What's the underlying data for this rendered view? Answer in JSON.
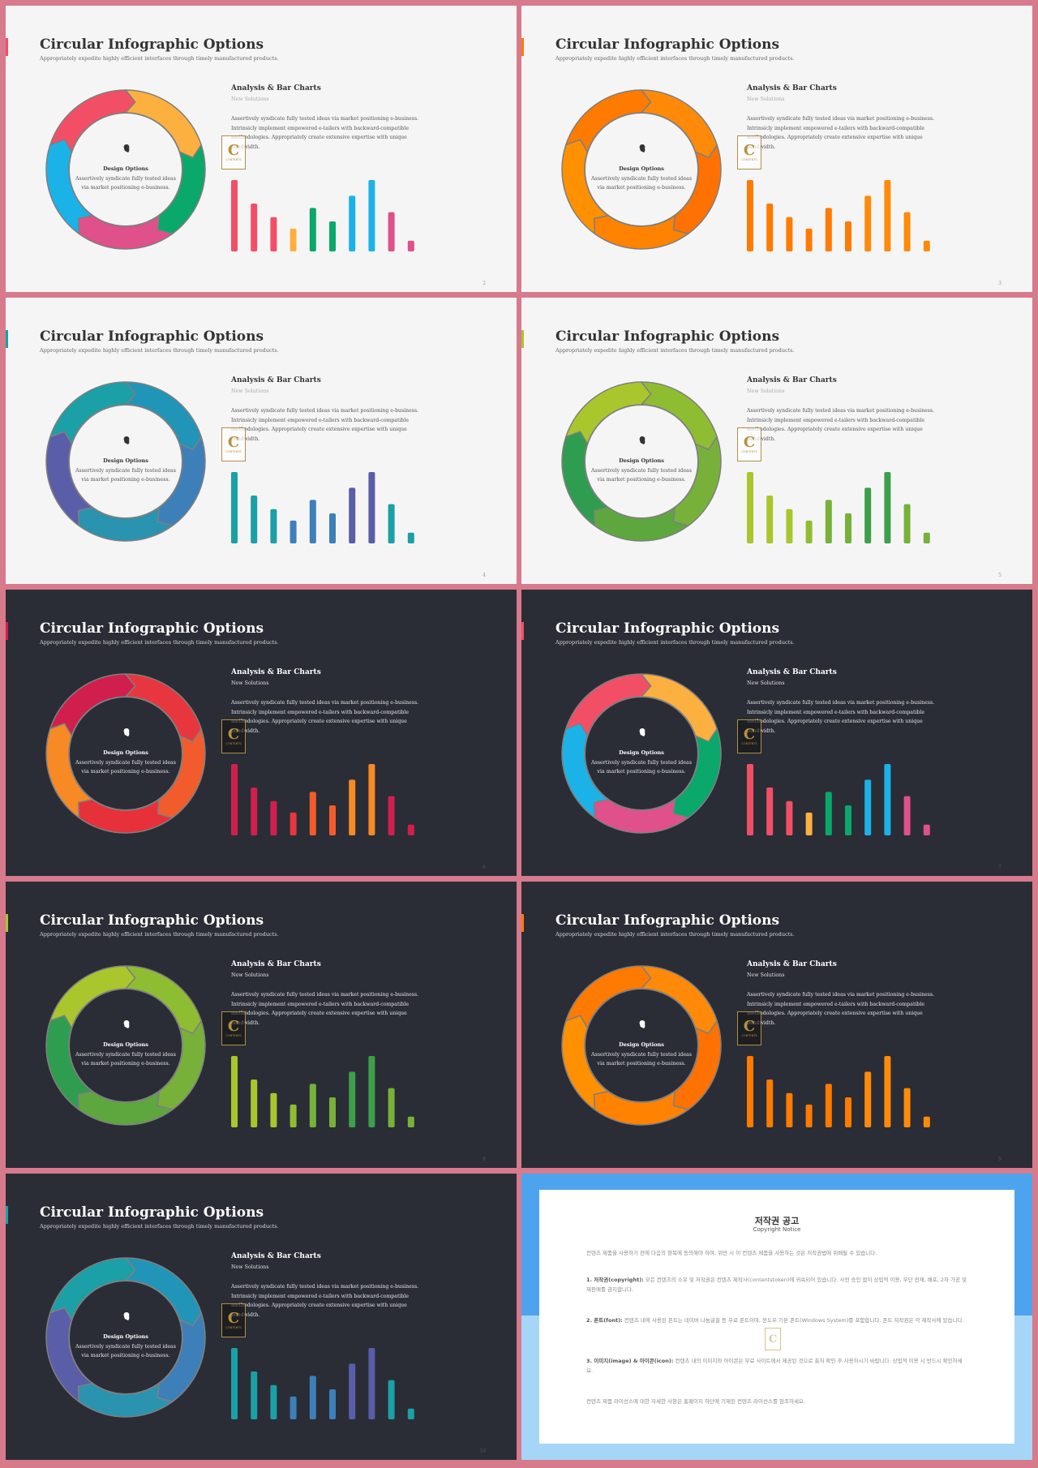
{
  "common": {
    "title": "Circular Infographic Options",
    "subtitle": "Appropriately expedite highly efficient interfaces through timely manufactured products.",
    "section_title": "Analysis & Bar Charts",
    "section_subtitle": "New Solutions",
    "body": "Assertively syndicate fully tested ideas via market positioning e-business. Intrinsicly implement empowered e-tailers with backward-compatible methodologies. Appropriately create extensive expertise with unique bandwidth.",
    "center_title": "Design Options",
    "center_text": "Assertively syndicate fully tested ideas via market positioning e-business.",
    "logo_letter": "C",
    "logo_word": "CONTENTS"
  },
  "slides": [
    {
      "theme": "light",
      "page": "2",
      "ring_colors": [
        "#f24f66",
        "#fbb040",
        "#0aa86b",
        "#e0508a",
        "#1bb2e8"
      ],
      "bar_colors": [
        "#f24f66",
        "#f24f66",
        "#f24f66",
        "#fbb040",
        "#0aa86b",
        "#0aa86b",
        "#1bb2e8",
        "#1bb2e8",
        "#e0508a",
        "#e0508a"
      ]
    },
    {
      "theme": "light",
      "page": "3",
      "ring_colors": [
        "#ff7a00",
        "#ff8a0a",
        "#ff7100",
        "#ff8200",
        "#ff9000"
      ],
      "bar_colors": [
        "#ff7a00",
        "#ff7a00",
        "#ff7a00",
        "#ff7a00",
        "#ff7a00",
        "#ff7a00",
        "#ff8a0a",
        "#ff8a0a",
        "#ff8a0a",
        "#ff8a0a"
      ]
    },
    {
      "theme": "light",
      "page": "4",
      "ring_colors": [
        "#1aa0a6",
        "#2195b8",
        "#3d7fb9",
        "#2a93b0",
        "#5a5ea8"
      ],
      "bar_colors": [
        "#1aa0a6",
        "#1aa0a6",
        "#1aa0a6",
        "#3d7fb9",
        "#3d7fb9",
        "#3d7fb9",
        "#5a5ea8",
        "#5a5ea8",
        "#1aa0a6",
        "#1aa0a6"
      ]
    },
    {
      "theme": "light",
      "page": "5",
      "ring_colors": [
        "#a9c62c",
        "#8fbd32",
        "#77b13a",
        "#5ea63e",
        "#2f9d4f"
      ],
      "bar_colors": [
        "#a9c62c",
        "#a9c62c",
        "#a9c62c",
        "#8fbd32",
        "#77b13a",
        "#77b13a",
        "#3d9f4a",
        "#3d9f4a",
        "#77b13a",
        "#77b13a"
      ]
    },
    {
      "theme": "dark",
      "page": "6",
      "ring_colors": [
        "#d11f4d",
        "#e8363e",
        "#f25c2c",
        "#e6313a",
        "#f78a25"
      ],
      "bar_colors": [
        "#d11f4d",
        "#d11f4d",
        "#d11f4d",
        "#e8363e",
        "#f25c2c",
        "#f25c2c",
        "#f78a25",
        "#f78a25",
        "#d11f4d",
        "#d11f4d"
      ]
    },
    {
      "theme": "dark",
      "page": "7",
      "ring_colors": [
        "#f24f66",
        "#fbb040",
        "#0aa86b",
        "#e0508a",
        "#1bb2e8"
      ],
      "bar_colors": [
        "#f24f66",
        "#f24f66",
        "#f24f66",
        "#fbb040",
        "#0aa86b",
        "#0aa86b",
        "#1bb2e8",
        "#1bb2e8",
        "#e0508a",
        "#e0508a"
      ]
    },
    {
      "theme": "dark",
      "page": "8",
      "ring_colors": [
        "#a9c62c",
        "#8fbd32",
        "#77b13a",
        "#5ea63e",
        "#2f9d4f"
      ],
      "bar_colors": [
        "#a9c62c",
        "#a9c62c",
        "#a9c62c",
        "#8fbd32",
        "#77b13a",
        "#77b13a",
        "#3d9f4a",
        "#3d9f4a",
        "#77b13a",
        "#77b13a"
      ]
    },
    {
      "theme": "dark",
      "page": "9",
      "ring_colors": [
        "#ff7a00",
        "#ff8a0a",
        "#ff7100",
        "#ff8200",
        "#ff9000"
      ],
      "bar_colors": [
        "#ff7a00",
        "#ff7a00",
        "#ff7a00",
        "#ff7a00",
        "#ff7a00",
        "#ff7a00",
        "#ff8a0a",
        "#ff8a0a",
        "#ff8a0a",
        "#ff8a0a"
      ]
    },
    {
      "theme": "dark",
      "page": "10",
      "ring_colors": [
        "#1aa0a6",
        "#2195b8",
        "#3d7fb9",
        "#2a93b0",
        "#5a5ea8"
      ],
      "bar_colors": [
        "#1aa0a6",
        "#1aa0a6",
        "#1aa0a6",
        "#3d7fb9",
        "#3d7fb9",
        "#3d7fb9",
        "#5a5ea8",
        "#5a5ea8",
        "#1aa0a6",
        "#1aa0a6"
      ]
    }
  ],
  "bar_values": [
    100,
    67,
    48,
    32,
    61,
    42,
    78,
    100,
    55,
    15
  ],
  "copyright": {
    "title": "저작권 공고",
    "subtitle": "Copyright Notice",
    "intro": "컨텐츠 제품을 사용하기 전에 다음의 항목에 동의해야 하며, 위반 시 이 컨텐츠 제품을 사용하는 것은 저작권법에 위배될 수 있습니다.",
    "p1_label": "1. 저작권(copyright):",
    "p1": "모든 컨텐츠의 소유 및 저작권은 컨텐츠 제작사(contentstoken)에 귀속되어 있습니다. 사전 승인 없이 상업적 이용, 무단 전재, 배포, 2차 가공 및 재판매를 금지합니다.",
    "p2_label": "2. 폰트(font):",
    "p2": "컨텐츠 내에 사용된 폰트는 네이버 나눔글꼴 등 무료 폰트이며, 윈도우 기본 폰트(Windows System)를 포함합니다. 폰트 저작권은 각 제작사에 있습니다.",
    "p3_label": "3. 이미지(image) & 아이콘(icon):",
    "p3": "컨텐츠 내의 이미지와 아이콘은 무료 사이트에서 제공된 것으로 출처 확인 후 사용하시기 바랍니다. 상업적 이용 시 반드시 확인하세요.",
    "outro": "컨텐츠 제품 라이선스에 대한 자세한 사항은 홈페이지 하단에 기재된 컨텐츠 라이선스를 참조하세요.",
    "logo_letter": "C"
  }
}
